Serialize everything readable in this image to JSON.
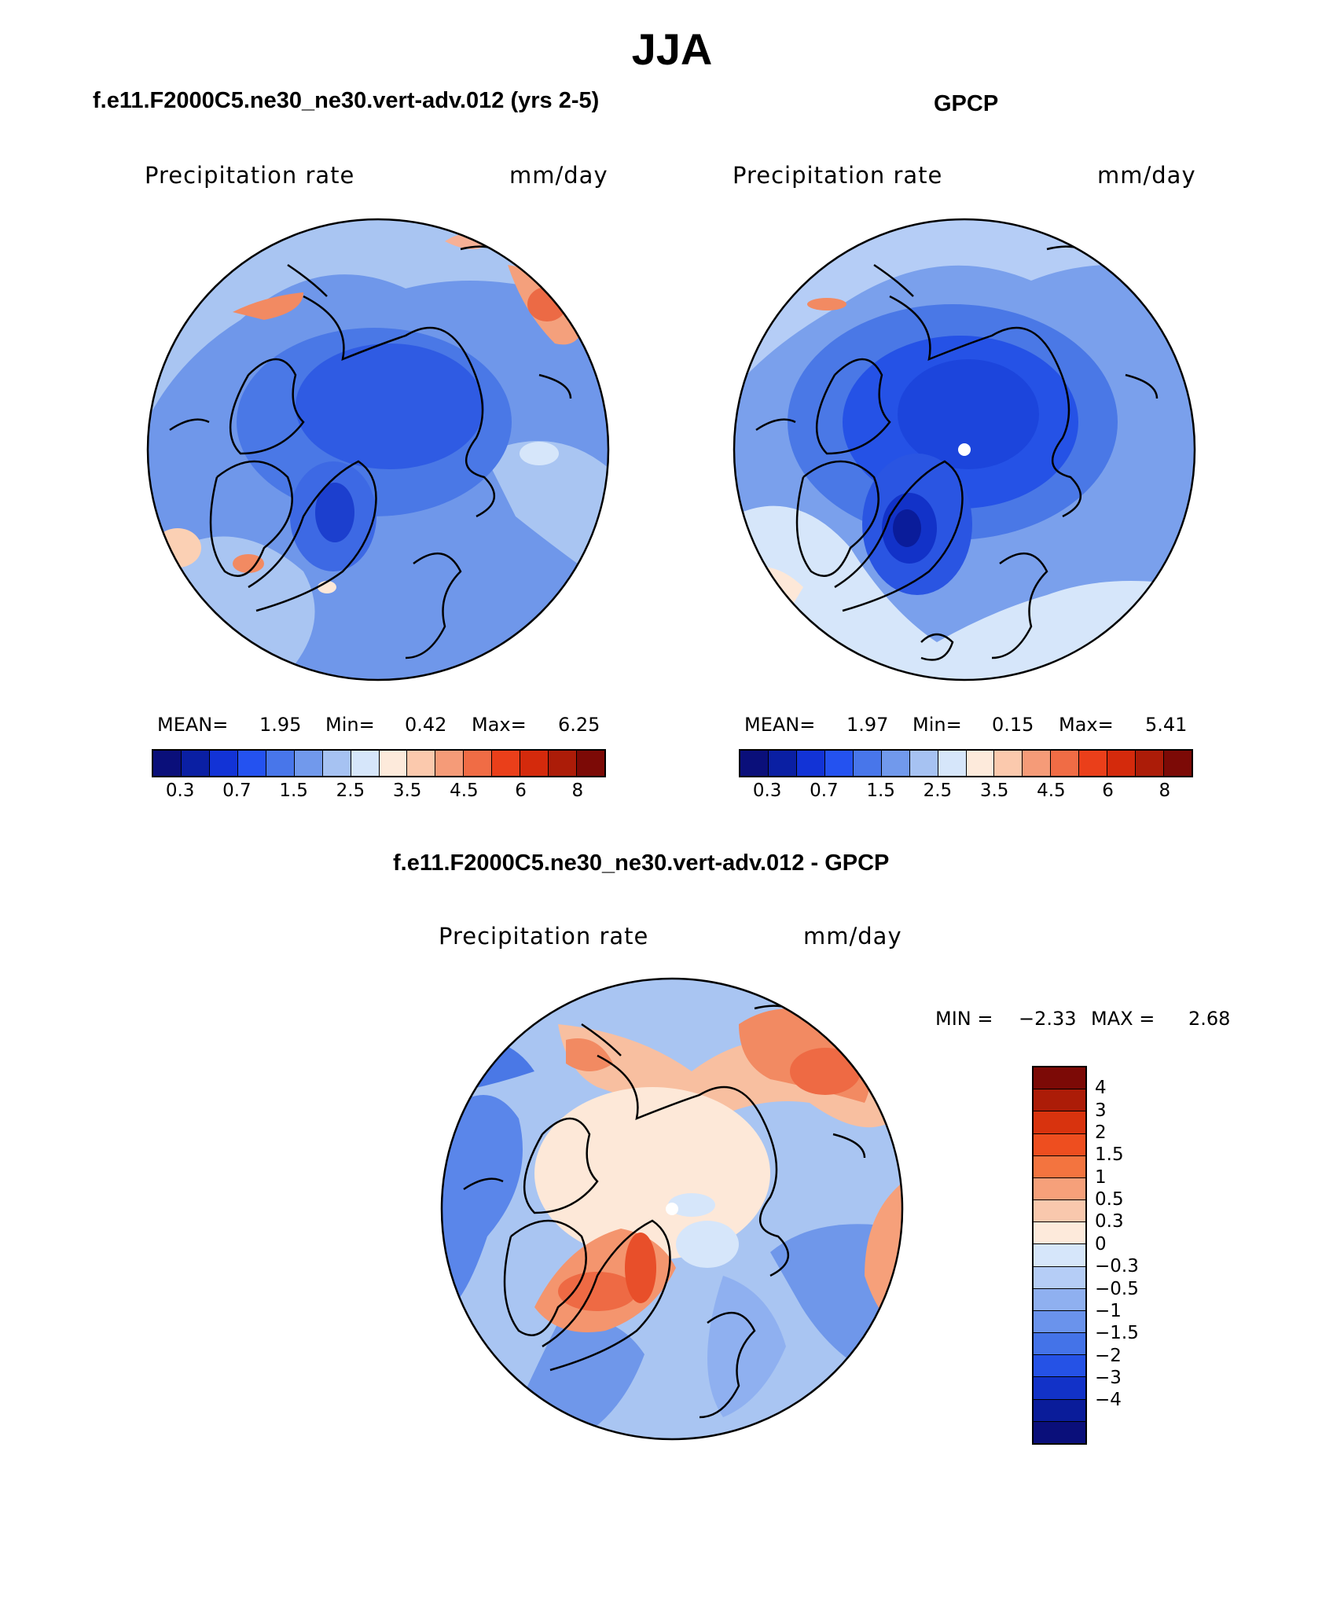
{
  "title": "JJA",
  "panels": [
    {
      "subtitle": "f.e11.F2000C5.ne30_ne30.vert-adv.012 (yrs 2-5)",
      "var_label": "Precipitation rate",
      "units": "mm/day",
      "mean_label": "MEAN=",
      "mean_value": "1.95",
      "min_label": "Min=",
      "min_value": "0.42",
      "max_label": "Max=",
      "max_value": "6.25"
    },
    {
      "subtitle": "GPCP",
      "var_label": "Precipitation rate",
      "units": "mm/day",
      "mean_label": "MEAN=",
      "mean_value": "1.97",
      "min_label": "Min=",
      "min_value": "0.15",
      "max_label": "Max=",
      "max_value": "5.41"
    }
  ],
  "diff_panel": {
    "subtitle": "f.e11.F2000C5.ne30_ne30.vert-adv.012 - GPCP",
    "var_label": "Precipitation rate",
    "units": "mm/day",
    "min_label": "MIN =",
    "min_value": "−2.33",
    "max_label": "MAX =",
    "max_value": "2.68"
  },
  "colorbar_abs": {
    "colors": [
      "#0a0f7a",
      "#0a1fa3",
      "#1233d6",
      "#2452f0",
      "#4876ea",
      "#7199ec",
      "#a6c2f2",
      "#d6e6fa",
      "#fdeadb",
      "#fbc9ad",
      "#f59b78",
      "#f06c45",
      "#ea3f1a",
      "#d42a0c",
      "#ac1c08",
      "#7c0a06"
    ],
    "ticks": [
      "0.3",
      "0.7",
      "1.5",
      "2.5",
      "3.5",
      "4.5",
      "6",
      "8"
    ]
  },
  "colorbar_diff": {
    "colors": [
      "#7c0a06",
      "#ac1c08",
      "#d8330e",
      "#ee4e1f",
      "#f3743f",
      "#f6a07a",
      "#f9c8ad",
      "#fdeadb",
      "#d6e6fa",
      "#b5cdf6",
      "#8fb0f0",
      "#6a93ec",
      "#4473e8",
      "#2552e6",
      "#1232c8",
      "#0a1c9a",
      "#0a0f7a"
    ],
    "ticks": [
      "4",
      "3",
      "2",
      "1.5",
      "1",
      "0.5",
      "0.3",
      "0",
      "−0.3",
      "−0.5",
      "−1",
      "−1.5",
      "−2",
      "−3",
      "−4"
    ]
  }
}
